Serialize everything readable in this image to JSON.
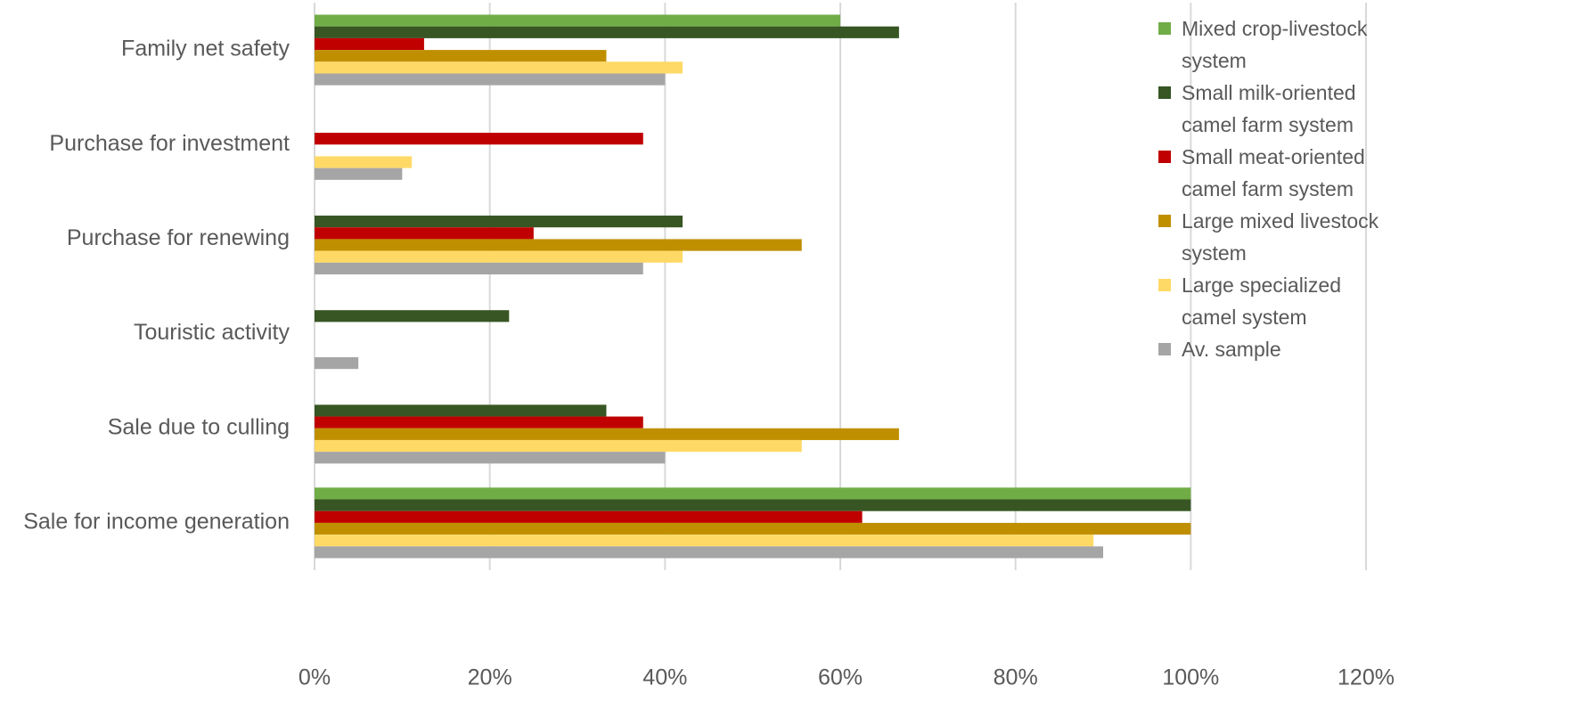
{
  "chart_data": {
    "type": "hbar",
    "categories": [
      "Family net safety",
      "Purchase for investment",
      "Purchase for renewing",
      "Touristic activity",
      "Sale due to culling",
      "Sale for income generation"
    ],
    "series": [
      {
        "name": "Mixed crop-livestock system",
        "color": "#70ad47",
        "values": [
          60,
          null,
          null,
          null,
          null,
          100
        ]
      },
      {
        "name": "Small milk-oriented camel farm system",
        "color": "#375623",
        "values": [
          66.7,
          null,
          42,
          22.2,
          33.3,
          100
        ]
      },
      {
        "name": "Small meat-oriented camel farm system",
        "color": "#c00000",
        "values": [
          12.5,
          37.5,
          25,
          null,
          37.5,
          62.5
        ]
      },
      {
        "name": "Large mixed livestock system",
        "color": "#bf8f00",
        "values": [
          33.3,
          null,
          55.6,
          null,
          66.7,
          100
        ]
      },
      {
        "name": "Large specialized camel system",
        "color": "#ffd966",
        "values": [
          42,
          11.1,
          42,
          null,
          55.6,
          88.9
        ]
      },
      {
        "name": "Av. sample",
        "color": "#a5a5a5",
        "values": [
          40,
          10,
          37.5,
          5,
          40,
          90
        ]
      }
    ],
    "xlim": [
      0,
      120
    ],
    "xticks": [
      {
        "value": 0,
        "label": "0%"
      },
      {
        "value": 20,
        "label": "20%"
      },
      {
        "value": 40,
        "label": "40%"
      },
      {
        "value": 60,
        "label": "60%"
      },
      {
        "value": 80,
        "label": "80%"
      },
      {
        "value": 100,
        "label": "100%"
      },
      {
        "value": 120,
        "label": "120%"
      }
    ],
    "grid": true
  }
}
